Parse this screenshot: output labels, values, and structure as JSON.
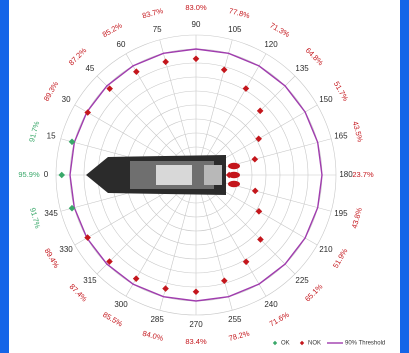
{
  "colors": {
    "background": "#1565e8",
    "grid": "#c8c8c8",
    "threshold": "#a03cae",
    "ok": "#3aa86a",
    "nok": "#c4161c",
    "vessel": "#2b2b2b"
  },
  "chart_data": {
    "type": "scatter",
    "subtype": "polar",
    "title": "",
    "angular_unit": "degrees",
    "angular_axis_orientation": "0 at left (bow direction), increasing clockwise toward top",
    "angles": [
      0,
      15,
      30,
      45,
      60,
      75,
      90,
      105,
      120,
      135,
      150,
      165,
      180,
      195,
      210,
      225,
      240,
      255,
      270,
      285,
      300,
      315,
      330,
      345
    ],
    "angle_labels": [
      "0",
      "15",
      "30",
      "45",
      "60",
      "75",
      "90",
      "105",
      "120",
      "135",
      "150",
      "165",
      "180",
      "195",
      "210",
      "225",
      "240",
      "255",
      "270",
      "285",
      "300",
      "315",
      "330",
      "345"
    ],
    "radial_range": [
      0,
      100
    ],
    "threshold": {
      "name": "90% Threshold",
      "value": 90
    },
    "points": [
      {
        "angle": 0,
        "value": 95.9,
        "label": "95.9%",
        "status": "OK"
      },
      {
        "angle": 15,
        "value": 91.7,
        "label": "91.7%",
        "status": "OK"
      },
      {
        "angle": 30,
        "value": 89.3,
        "label": "89.3%",
        "status": "NOK"
      },
      {
        "angle": 45,
        "value": 87.2,
        "label": "87.2%",
        "status": "NOK"
      },
      {
        "angle": 60,
        "value": 85.2,
        "label": "85.2%",
        "status": "NOK"
      },
      {
        "angle": 75,
        "value": 83.7,
        "label": "83.7%",
        "status": "NOK"
      },
      {
        "angle": 90,
        "value": 83.0,
        "label": "83.0%",
        "status": "NOK"
      },
      {
        "angle": 105,
        "value": 77.8,
        "label": "77.8%",
        "status": "NOK"
      },
      {
        "angle": 120,
        "value": 71.3,
        "label": "71.3%",
        "status": "NOK"
      },
      {
        "angle": 135,
        "value": 64.8,
        "label": "64.8%",
        "status": "NOK"
      },
      {
        "angle": 150,
        "value": 51.7,
        "label": "51.7%",
        "status": "NOK"
      },
      {
        "angle": 165,
        "value": 43.5,
        "label": "43.5%",
        "status": "NOK"
      },
      {
        "angle": 180,
        "value": 23.7,
        "label": "23.7%",
        "status": "NOK"
      },
      {
        "angle": 195,
        "value": 43.8,
        "label": "43.8%",
        "status": "NOK"
      },
      {
        "angle": 210,
        "value": 51.9,
        "label": "51.9%",
        "status": "NOK"
      },
      {
        "angle": 225,
        "value": 65.1,
        "label": "65.1%",
        "status": "NOK"
      },
      {
        "angle": 240,
        "value": 71.6,
        "label": "71.6%",
        "status": "NOK"
      },
      {
        "angle": 255,
        "value": 78.2,
        "label": "78.2%",
        "status": "NOK"
      },
      {
        "angle": 270,
        "value": 83.4,
        "label": "83.4%",
        "status": "NOK"
      },
      {
        "angle": 285,
        "value": 84.0,
        "label": "84.0%",
        "status": "NOK"
      },
      {
        "angle": 300,
        "value": 85.5,
        "label": "85.5%",
        "status": "NOK"
      },
      {
        "angle": 315,
        "value": 87.4,
        "label": "87.4%",
        "status": "NOK"
      },
      {
        "angle": 330,
        "value": 89.4,
        "label": "89.4%",
        "status": "NOK"
      },
      {
        "angle": 345,
        "value": 91.7,
        "label": "91.7%",
        "status": "OK"
      }
    ],
    "legend": {
      "placement": "bottom-right",
      "entries": [
        {
          "name": "OK",
          "marker": "diamond",
          "color": "#3aa86a"
        },
        {
          "name": "NOK",
          "marker": "diamond",
          "color": "#c4161c"
        },
        {
          "name": "90% Threshold",
          "marker": "line",
          "color": "#a03cae"
        }
      ]
    },
    "grid": true
  }
}
